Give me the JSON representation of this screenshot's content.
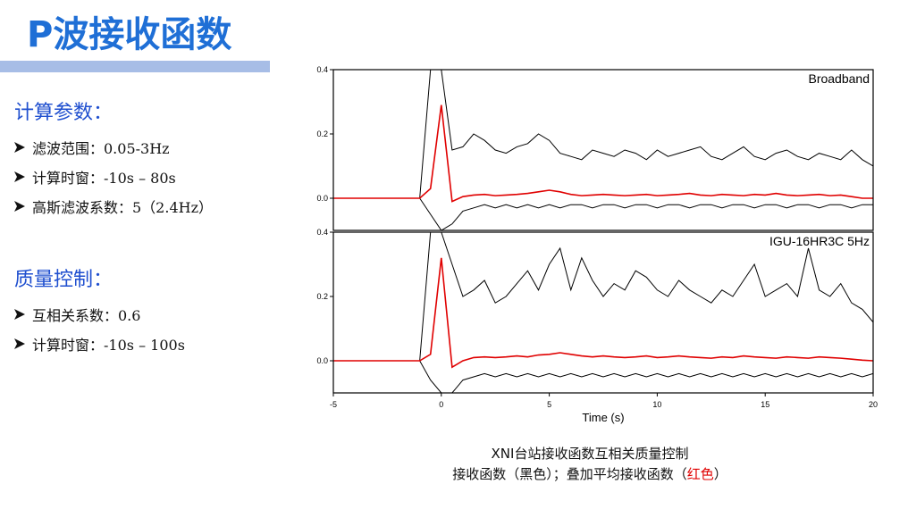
{
  "header": {
    "title": "P波接收函数"
  },
  "sections": [
    {
      "heading": "计算参数：",
      "items": [
        "滤波范围：0.05-3Hz",
        "计算时窗：-10s – 80s",
        "高斯滤波系数：5（2.4Hz）"
      ]
    },
    {
      "heading": "质量控制：",
      "items": [
        "互相关系数：0.6",
        "计算时窗：-10s – 100s"
      ]
    }
  ],
  "chart_data": [
    {
      "type": "line",
      "label": "Broadband",
      "x": [
        -5,
        -4.5,
        -4,
        -3.5,
        -3,
        -2.5,
        -2,
        -1.5,
        -1,
        -0.5,
        0,
        0.5,
        1,
        1.5,
        2,
        2.5,
        3,
        3.5,
        4,
        4.5,
        5,
        5.5,
        6,
        6.5,
        7,
        7.5,
        8,
        8.5,
        9,
        9.5,
        10,
        10.5,
        11,
        11.5,
        12,
        12.5,
        13,
        13.5,
        14,
        14.5,
        15,
        15.5,
        16,
        16.5,
        17,
        17.5,
        18,
        18.5,
        19,
        19.5,
        20
      ],
      "series": [
        {
          "color": "#000000",
          "values": [
            0,
            0,
            0,
            0,
            0,
            0,
            0,
            0,
            0,
            0.4,
            0.4,
            0.15,
            0.16,
            0.2,
            0.18,
            0.15,
            0.14,
            0.16,
            0.17,
            0.2,
            0.18,
            0.14,
            0.13,
            0.12,
            0.15,
            0.14,
            0.13,
            0.15,
            0.14,
            0.12,
            0.15,
            0.13,
            0.14,
            0.15,
            0.16,
            0.13,
            0.12,
            0.14,
            0.16,
            0.13,
            0.12,
            0.14,
            0.15,
            0.13,
            0.12,
            0.14,
            0.13,
            0.12,
            0.15,
            0.12,
            0.1
          ]
        },
        {
          "color": "#000000",
          "values": [
            0,
            0,
            0,
            0,
            0,
            0,
            0,
            0,
            0,
            -0.05,
            -0.1,
            -0.08,
            -0.04,
            -0.03,
            -0.02,
            -0.03,
            -0.02,
            -0.03,
            -0.02,
            -0.03,
            -0.02,
            -0.03,
            -0.02,
            -0.02,
            -0.03,
            -0.02,
            -0.02,
            -0.03,
            -0.02,
            -0.02,
            -0.03,
            -0.02,
            -0.02,
            -0.03,
            -0.02,
            -0.02,
            -0.03,
            -0.02,
            -0.02,
            -0.03,
            -0.02,
            -0.02,
            -0.03,
            -0.02,
            -0.02,
            -0.03,
            -0.02,
            -0.02,
            -0.03,
            -0.02,
            -0.02
          ]
        },
        {
          "color": "#e00000",
          "values": [
            0,
            0,
            0,
            0,
            0,
            0,
            0,
            0,
            0,
            0.03,
            0.29,
            -0.01,
            0.005,
            0.01,
            0.012,
            0.008,
            0.01,
            0.012,
            0.015,
            0.02,
            0.025,
            0.02,
            0.012,
            0.008,
            0.01,
            0.012,
            0.01,
            0.008,
            0.01,
            0.012,
            0.008,
            0.01,
            0.012,
            0.015,
            0.01,
            0.008,
            0.012,
            0.01,
            0.008,
            0.012,
            0.01,
            0.015,
            0.01,
            0.008,
            0.01,
            0.012,
            0.008,
            0.01,
            0.005,
            0,
            0
          ]
        }
      ],
      "xlim": [
        -5,
        20
      ],
      "ylim": [
        -0.1,
        0.4
      ],
      "yticks": [
        {
          "value": 0,
          "label": "0.0"
        },
        0.2,
        0.4
      ]
    },
    {
      "type": "line",
      "label": "IGU-16HR3C 5Hz",
      "x": [
        -5,
        -4.5,
        -4,
        -3.5,
        -3,
        -2.5,
        -2,
        -1.5,
        -1,
        -0.5,
        0,
        0.5,
        1,
        1.5,
        2,
        2.5,
        3,
        3.5,
        4,
        4.5,
        5,
        5.5,
        6,
        6.5,
        7,
        7.5,
        8,
        8.5,
        9,
        9.5,
        10,
        10.5,
        11,
        11.5,
        12,
        12.5,
        13,
        13.5,
        14,
        14.5,
        15,
        15.5,
        16,
        16.5,
        17,
        17.5,
        18,
        18.5,
        19,
        19.5,
        20
      ],
      "series": [
        {
          "color": "#000000",
          "values": [
            0,
            0,
            0,
            0,
            0,
            0,
            0,
            0,
            0,
            0.4,
            0.4,
            0.3,
            0.2,
            0.22,
            0.25,
            0.18,
            0.2,
            0.24,
            0.28,
            0.22,
            0.3,
            0.35,
            0.22,
            0.32,
            0.25,
            0.2,
            0.24,
            0.22,
            0.28,
            0.26,
            0.22,
            0.2,
            0.25,
            0.22,
            0.2,
            0.18,
            0.22,
            0.2,
            0.25,
            0.3,
            0.2,
            0.22,
            0.24,
            0.2,
            0.35,
            0.22,
            0.2,
            0.24,
            0.18,
            0.16,
            0.12
          ]
        },
        {
          "color": "#000000",
          "values": [
            0,
            0,
            0,
            0,
            0,
            0,
            0,
            0,
            0,
            -0.06,
            -0.1,
            -0.1,
            -0.06,
            -0.05,
            -0.04,
            -0.05,
            -0.04,
            -0.05,
            -0.04,
            -0.05,
            -0.04,
            -0.05,
            -0.04,
            -0.05,
            -0.04,
            -0.05,
            -0.04,
            -0.05,
            -0.04,
            -0.05,
            -0.04,
            -0.05,
            -0.04,
            -0.05,
            -0.04,
            -0.05,
            -0.04,
            -0.05,
            -0.04,
            -0.05,
            -0.04,
            -0.05,
            -0.04,
            -0.05,
            -0.04,
            -0.05,
            -0.04,
            -0.05,
            -0.04,
            -0.05,
            -0.04
          ]
        },
        {
          "color": "#e00000",
          "values": [
            0,
            0,
            0,
            0,
            0,
            0,
            0,
            0,
            0,
            0.02,
            0.32,
            -0.02,
            0,
            0.01,
            0.012,
            0.01,
            0.012,
            0.015,
            0.012,
            0.018,
            0.02,
            0.025,
            0.02,
            0.015,
            0.012,
            0.015,
            0.012,
            0.01,
            0.012,
            0.015,
            0.01,
            0.012,
            0.015,
            0.012,
            0.01,
            0.008,
            0.012,
            0.01,
            0.015,
            0.012,
            0.01,
            0.008,
            0.012,
            0.01,
            0.008,
            0.012,
            0.01,
            0.008,
            0.005,
            0.002,
            0
          ]
        }
      ],
      "xlim": [
        -5,
        20
      ],
      "ylim": [
        -0.1,
        0.4
      ],
      "xticks": [
        -5,
        0,
        5,
        10,
        15,
        20
      ],
      "yticks": [
        {
          "value": 0,
          "label": "0.0"
        },
        0.2,
        0.4
      ],
      "xlabel": "Time (s)"
    }
  ],
  "caption": {
    "title": "XNI台站接收函数互相关质量控制",
    "note": "接收函数（黑色）；叠加平均接收函数（",
    "highlight": "红色",
    "note_end": "）"
  }
}
